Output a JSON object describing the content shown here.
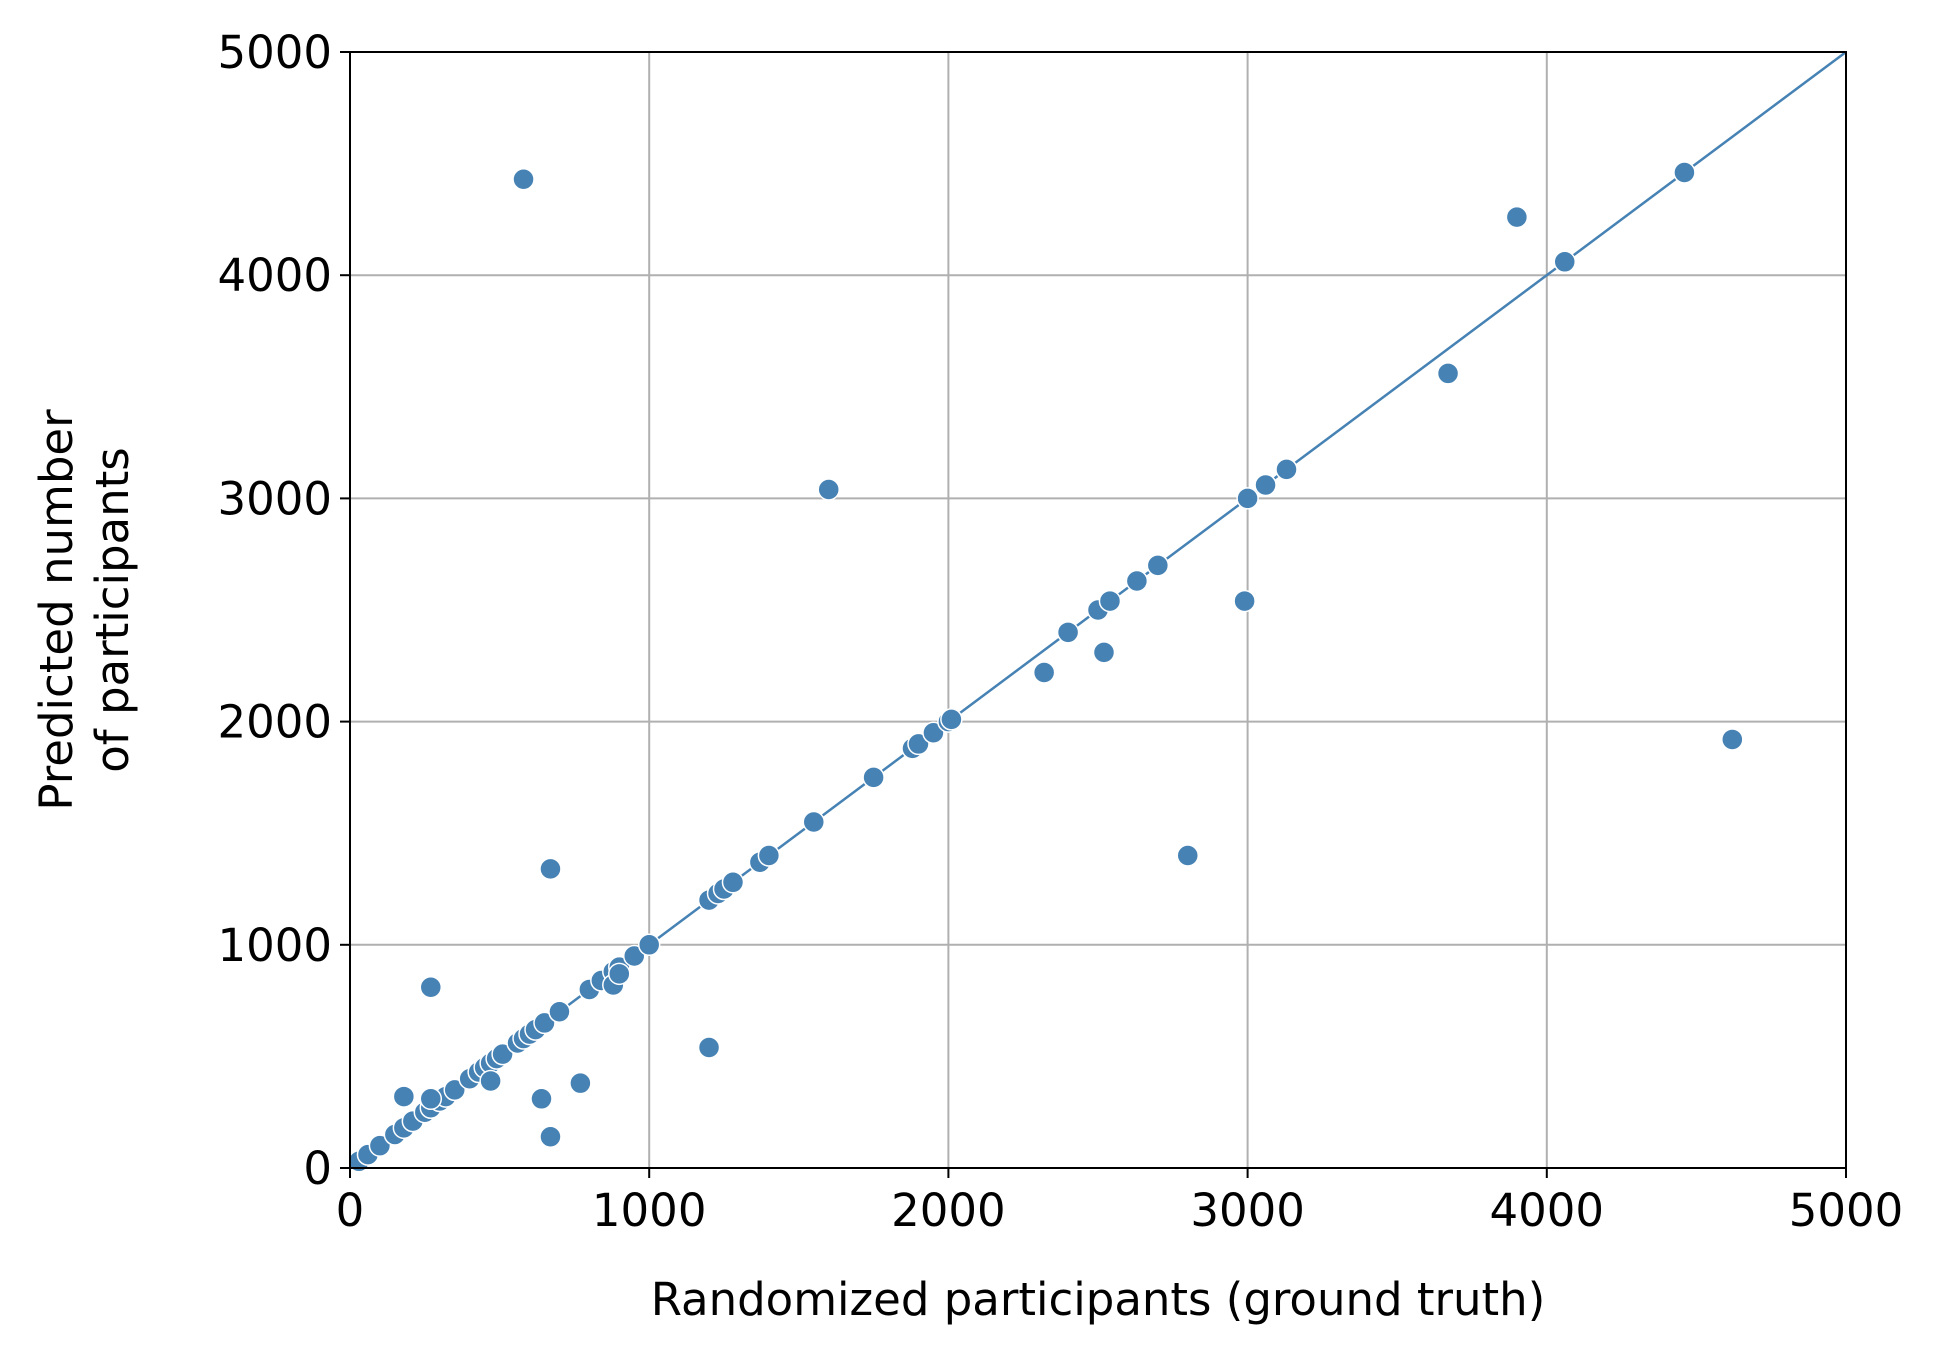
{
  "chart_data": {
    "type": "scatter",
    "title": "",
    "xlabel": "Randomized participants (ground truth)",
    "ylabel_lines": [
      "Predicted number",
      "of participants"
    ],
    "xlim": [
      0,
      5000
    ],
    "ylim": [
      0,
      5000
    ],
    "xticks": [
      0,
      1000,
      2000,
      3000,
      4000,
      5000
    ],
    "yticks": [
      0,
      1000,
      2000,
      3000,
      4000,
      5000
    ],
    "xtick_labels": [
      "0",
      "1000",
      "2000",
      "3000",
      "4000",
      "5000"
    ],
    "ytick_labels": [
      "0",
      "1000",
      "2000",
      "3000",
      "4000",
      "5000"
    ],
    "grid": true,
    "marker_color": "#4682b4",
    "line_color": "#4682b4",
    "reference_line": {
      "x": [
        0,
        5000
      ],
      "y": [
        0,
        5000
      ]
    },
    "points": [
      [
        30,
        30
      ],
      [
        60,
        60
      ],
      [
        100,
        100
      ],
      [
        150,
        150
      ],
      [
        180,
        180
      ],
      [
        210,
        210
      ],
      [
        250,
        250
      ],
      [
        270,
        270
      ],
      [
        300,
        300
      ],
      [
        320,
        320
      ],
      [
        350,
        350
      ],
      [
        400,
        400
      ],
      [
        430,
        430
      ],
      [
        450,
        450
      ],
      [
        470,
        470
      ],
      [
        490,
        490
      ],
      [
        510,
        510
      ],
      [
        560,
        560
      ],
      [
        580,
        580
      ],
      [
        600,
        600
      ],
      [
        620,
        620
      ],
      [
        650,
        650
      ],
      [
        700,
        700
      ],
      [
        800,
        800
      ],
      [
        840,
        840
      ],
      [
        880,
        880
      ],
      [
        900,
        900
      ],
      [
        950,
        950
      ],
      [
        1000,
        1000
      ],
      [
        1200,
        1200
      ],
      [
        1230,
        1230
      ],
      [
        1250,
        1250
      ],
      [
        1280,
        1280
      ],
      [
        1370,
        1370
      ],
      [
        1400,
        1400
      ],
      [
        1550,
        1550
      ],
      [
        1750,
        1750
      ],
      [
        1880,
        1880
      ],
      [
        1900,
        1900
      ],
      [
        1950,
        1950
      ],
      [
        2000,
        2000
      ],
      [
        2010,
        2010
      ],
      [
        2400,
        2400
      ],
      [
        2500,
        2500
      ],
      [
        2540,
        2540
      ],
      [
        2630,
        2630
      ],
      [
        2700,
        2700
      ],
      [
        3000,
        3000
      ],
      [
        3060,
        3060
      ],
      [
        3130,
        3130
      ],
      [
        4060,
        4060
      ],
      [
        4460,
        4460
      ],
      [
        580,
        4430
      ],
      [
        3900,
        4260
      ],
      [
        1600,
        3040
      ],
      [
        3670,
        3560
      ],
      [
        2990,
        2540
      ],
      [
        2320,
        2220
      ],
      [
        2520,
        2310
      ],
      [
        4620,
        1920
      ],
      [
        2800,
        1400
      ],
      [
        670,
        1340
      ],
      [
        270,
        810
      ],
      [
        1200,
        540
      ],
      [
        180,
        320
      ],
      [
        270,
        310
      ],
      [
        640,
        310
      ],
      [
        770,
        380
      ],
      [
        670,
        140
      ],
      [
        470,
        390
      ],
      [
        880,
        820
      ],
      [
        900,
        870
      ]
    ]
  }
}
